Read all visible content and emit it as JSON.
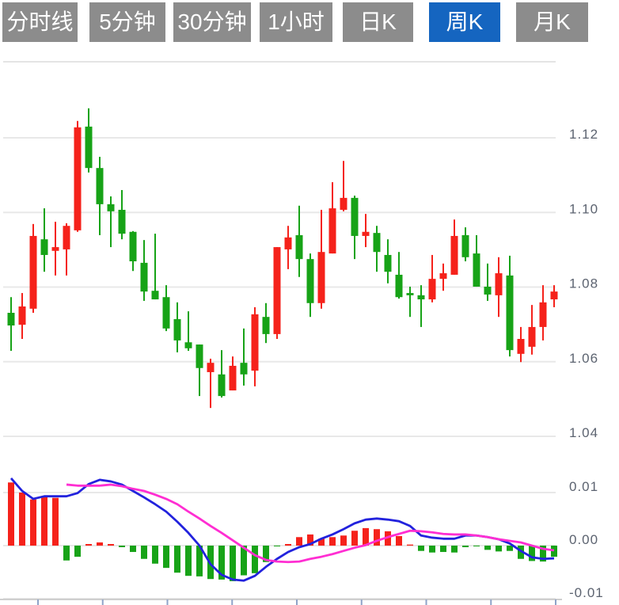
{
  "tabs": {
    "items": [
      {
        "label": "分时线"
      },
      {
        "label": "5分钟"
      },
      {
        "label": "30分钟"
      },
      {
        "label": "1小时"
      },
      {
        "label": "日K"
      },
      {
        "label": "周K"
      },
      {
        "label": "月K"
      }
    ],
    "active_index": 5,
    "active_label": "周K"
  },
  "colors": {
    "tab_bg": "#8C8C8C",
    "tab_active_bg": "#1565C0",
    "tab_text": "#FFFFFF",
    "bull_red": "#F5221B",
    "bear_green": "#17A317",
    "dif_blue": "#2222DD",
    "dea_magenta": "#FF2ED2",
    "grid": "#E8E8E8",
    "panel_border": "#E4E4E4",
    "axis_label": "#5C6370",
    "axis_line": "#CFCFCF",
    "axis_tick": "#8FA3C8",
    "background": "#FFFFFF"
  },
  "chart_data": {
    "type": "candlestick",
    "title": "",
    "legend_position": "none",
    "grid": true,
    "panels": [
      {
        "name": "price",
        "type": "candlestick",
        "y_ticks": [
          "1.12",
          "1.10",
          "1.08",
          "1.06",
          "1.04"
        ],
        "y_tick_values": [
          1.12,
          1.1,
          1.08,
          1.06,
          1.04
        ],
        "ylim": [
          1.033,
          1.14
        ],
        "up_color_convention": "red-up-green-down (CN)",
        "ohlc": [
          [
            1.0731,
            1.0773,
            1.0629,
            1.0697
          ],
          [
            1.0699,
            1.0784,
            1.0661,
            1.0748
          ],
          [
            1.0742,
            1.0969,
            1.0731,
            1.0937
          ],
          [
            1.0928,
            1.1011,
            1.0841,
            1.0886
          ],
          [
            1.0897,
            1.0975,
            1.0831,
            1.0907
          ],
          [
            1.0901,
            1.0971,
            1.0831,
            1.0964
          ],
          [
            1.0952,
            1.1245,
            1.0948,
            1.1228
          ],
          [
            1.123,
            1.1279,
            1.1107,
            1.1119
          ],
          [
            1.1119,
            1.1149,
            1.0939,
            1.1022
          ],
          [
            1.1022,
            1.1043,
            1.0907,
            1.1003
          ],
          [
            1.1007,
            1.106,
            1.0928,
            1.0943
          ],
          [
            1.0948,
            1.095,
            1.0843,
            1.0869
          ],
          [
            1.0865,
            1.0926,
            1.0763,
            1.0788
          ],
          [
            1.079,
            1.0943,
            1.0767,
            1.0767
          ],
          [
            1.0773,
            1.0805,
            1.0682,
            1.0689
          ],
          [
            1.0714,
            1.0759,
            1.0625,
            1.0657
          ],
          [
            1.0652,
            1.0735,
            1.0629,
            1.0636
          ],
          [
            1.0646,
            1.0646,
            1.0508,
            1.0583
          ],
          [
            1.0572,
            1.0608,
            1.0476,
            1.0597
          ],
          [
            1.0566,
            1.0631,
            1.0504,
            1.0508
          ],
          [
            1.0523,
            1.0614,
            1.0523,
            1.0589
          ],
          [
            1.0597,
            1.0689,
            1.0536,
            1.0566
          ],
          [
            1.0576,
            1.0746,
            1.0534,
            1.0727
          ],
          [
            1.072,
            1.0757,
            1.065,
            1.0674
          ],
          [
            1.0674,
            1.0907,
            1.0661,
            1.0907
          ],
          [
            1.0901,
            1.0964,
            1.0848,
            1.0933
          ],
          [
            1.0939,
            1.1018,
            1.0827,
            1.0875
          ],
          [
            1.0875,
            1.089,
            1.072,
            1.0757
          ],
          [
            1.0757,
            1.1007,
            1.0742,
            1.0894
          ],
          [
            1.089,
            1.1081,
            1.089,
            1.1011
          ],
          [
            1.1007,
            1.1138,
            1.1003,
            1.1039
          ],
          [
            1.1039,
            1.1045,
            1.0875,
            1.0937
          ],
          [
            1.0937,
            1.0996,
            1.0907,
            1.0948
          ],
          [
            1.0945,
            1.0964,
            1.0841,
            1.0894
          ],
          [
            1.0886,
            1.0928,
            1.081,
            1.0841
          ],
          [
            1.0833,
            1.0894,
            1.0769,
            1.0773
          ],
          [
            1.0784,
            1.0801,
            1.072,
            1.0778
          ],
          [
            1.0778,
            1.0805,
            1.0693,
            1.0767
          ],
          [
            1.0767,
            1.0886,
            1.0759,
            1.0822
          ],
          [
            1.0822,
            1.0863,
            1.079,
            1.0837
          ],
          [
            1.0833,
            1.0981,
            1.0833,
            1.0937
          ],
          [
            1.0939,
            1.096,
            1.0869,
            1.088
          ],
          [
            1.089,
            1.0939,
            1.0801,
            1.0801
          ],
          [
            1.0801,
            1.0863,
            1.0763,
            1.078
          ],
          [
            1.0778,
            1.088,
            1.072,
            1.0837
          ],
          [
            1.0831,
            1.0884,
            1.0614,
            1.0631
          ],
          [
            1.0621,
            1.0693,
            1.0599,
            1.0661
          ],
          [
            1.064,
            1.0752,
            1.0619,
            1.0693
          ],
          [
            1.0693,
            1.0805,
            1.0657,
            1.0759
          ],
          [
            1.0767,
            1.0805,
            1.0746,
            1.0788
          ]
        ]
      },
      {
        "name": "macd",
        "type": "macd",
        "y_ticks": [
          "0.01",
          "0.00",
          "-0.01"
        ],
        "y_tick_values": [
          0.01,
          0.0,
          -0.01
        ],
        "ylim": [
          -0.0115,
          0.016
        ],
        "histogram": [
          0.0119,
          0.01,
          0.0087,
          0.0093,
          0.009,
          -0.0028,
          -0.0021,
          0.0003,
          0.0006,
          0.0003,
          -0.0003,
          -0.0012,
          -0.0025,
          -0.0034,
          -0.0042,
          -0.0051,
          -0.0057,
          -0.0058,
          -0.0063,
          -0.0064,
          -0.0067,
          -0.0056,
          -0.0052,
          -0.0031,
          -0.0001,
          0.0003,
          0.0016,
          0.0021,
          0.0013,
          0.0016,
          0.0019,
          0.0028,
          0.0033,
          0.0031,
          0.0027,
          0.0018,
          0.0002,
          -0.001,
          -0.0013,
          -0.0012,
          -0.0013,
          -0.0003,
          -0.0001,
          -0.0008,
          -0.0011,
          -0.001,
          -0.0025,
          -0.0029,
          -0.003,
          -0.0021
        ],
        "series": [
          {
            "name": "DIF",
            "color_key": "dif_blue",
            "values": [
              0.0127,
              0.0103,
              0.0088,
              0.0093,
              0.0093,
              0.0093,
              0.0099,
              0.0116,
              0.0124,
              0.0121,
              0.0115,
              0.0103,
              0.0091,
              0.0078,
              0.0064,
              0.0045,
              0.0024,
              0.0,
              -0.0035,
              -0.0055,
              -0.0064,
              -0.0066,
              -0.0057,
              -0.004,
              -0.0025,
              -0.0012,
              -0.0003,
              0.0003,
              0.0013,
              0.0021,
              0.0031,
              0.0042,
              0.0049,
              0.0051,
              0.0049,
              0.0046,
              0.0037,
              0.0019,
              0.0015,
              0.0013,
              0.0013,
              0.0019,
              0.0019,
              0.0016,
              0.0012,
              0.0004,
              -0.001,
              -0.0022,
              -0.0025,
              -0.0024
            ]
          },
          {
            "name": "DEA",
            "color_key": "dea_magenta",
            "values": [
              null,
              null,
              null,
              null,
              null,
              0.0115,
              0.0113,
              0.0113,
              0.0113,
              0.0115,
              0.0112,
              0.0107,
              0.0103,
              0.0096,
              0.0088,
              0.0078,
              0.0064,
              0.0051,
              0.0037,
              0.0024,
              0.001,
              -0.0004,
              -0.0018,
              -0.0027,
              -0.003,
              -0.0031,
              -0.003,
              -0.0025,
              -0.0021,
              -0.0016,
              -0.001,
              -0.0004,
              0.0001,
              0.0009,
              0.0016,
              0.0022,
              0.0028,
              0.0027,
              0.0025,
              0.0022,
              0.0021,
              0.0021,
              0.0019,
              0.0016,
              0.0012,
              0.0009,
              0.0006,
              0.0,
              -0.0006,
              -0.0009
            ]
          }
        ]
      }
    ]
  }
}
